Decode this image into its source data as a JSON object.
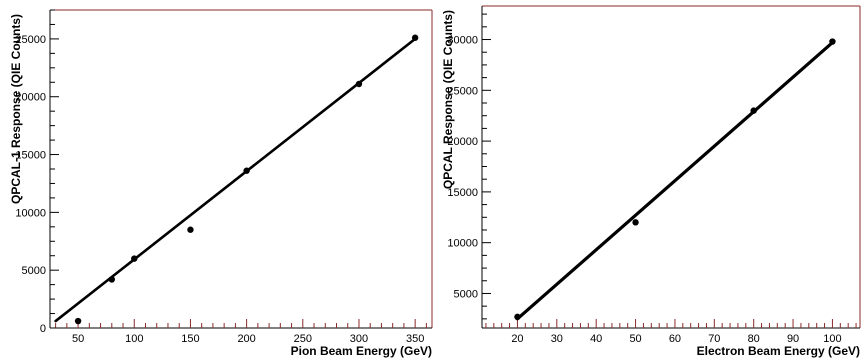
{
  "chart_data": [
    {
      "type": "scatter",
      "title": "",
      "xlabel": "Pion Beam Energy (GeV)",
      "ylabel": "QPCAL-1 Response (QIE Counts)",
      "xlim": [
        25,
        365
      ],
      "ylim": [
        0,
        27500
      ],
      "xticks": [
        50,
        100,
        150,
        200,
        250,
        300,
        350
      ],
      "yticks": [
        0,
        5000,
        10000,
        15000,
        20000,
        25000
      ],
      "grid": false,
      "series": [
        {
          "points": [
            {
              "x": 50,
              "y": 600
            },
            {
              "x": 80,
              "y": 4200
            },
            {
              "x": 100,
              "y": 6000
            },
            {
              "x": 150,
              "y": 8500
            },
            {
              "x": 200,
              "y": 13600
            },
            {
              "x": 300,
              "y": 21100
            },
            {
              "x": 350,
              "y": 25100
            }
          ],
          "fit": {
            "x": [
              30,
              350
            ],
            "y": [
              600,
              25000
            ]
          }
        }
      ]
    },
    {
      "type": "scatter",
      "title": "",
      "xlabel": "Electron Beam Energy (GeV)",
      "ylabel": "QPCAL Response (QIE Counts)",
      "xlim": [
        11,
        107
      ],
      "ylim": [
        1600,
        33300
      ],
      "xticks": [
        20,
        30,
        40,
        50,
        60,
        70,
        80,
        90,
        100
      ],
      "yticks": [
        5000,
        10000,
        15000,
        20000,
        25000,
        30000
      ],
      "grid": false,
      "series": [
        {
          "points": [
            {
              "x": 20,
              "y": 2700
            },
            {
              "x": 50,
              "y": 12000
            },
            {
              "x": 80,
              "y": 23000
            },
            {
              "x": 100,
              "y": 29800
            }
          ],
          "fit": {
            "x": [
              20,
              100
            ],
            "y": [
              2500,
              29700
            ]
          }
        }
      ]
    }
  ]
}
